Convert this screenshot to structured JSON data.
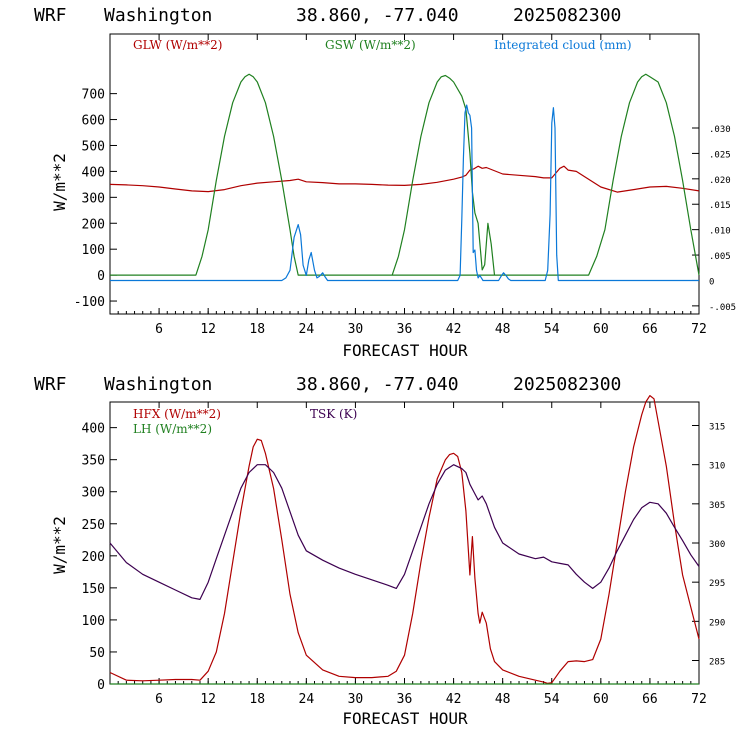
{
  "colors": {
    "glw": "#b00000",
    "gsw": "#208020",
    "cloud": "#0a78d8",
    "hfx": "#b00000",
    "lh": "#208020",
    "tsk": "#3c0050"
  },
  "chart_data": [
    {
      "type": "line",
      "header": {
        "model": "WRF",
        "location": "Washington",
        "coords": "38.860, -77.040",
        "init": "2025082300"
      },
      "xlabel": "FORECAST HOUR",
      "ylabel": "W/m**2",
      "xlim": [
        0,
        72
      ],
      "ylim": [
        -150,
        930
      ],
      "xticks": [
        6,
        12,
        18,
        24,
        30,
        36,
        42,
        48,
        54,
        60,
        66,
        72
      ],
      "yticks": [
        -100,
        0,
        100,
        200,
        300,
        400,
        500,
        600,
        700
      ],
      "y2lim": [
        -0.0066,
        0.0485
      ],
      "y2ticks": [
        -0.005,
        0,
        0.005,
        0.01,
        0.015,
        0.02,
        0.025,
        0.03
      ],
      "y2ticklabels": [
        "-.005",
        "0",
        ".005",
        ".010",
        ".015",
        ".020",
        ".025",
        ".030"
      ],
      "series": [
        {
          "name": "GLW (W/m**2)",
          "axis": "left",
          "x": [
            0,
            2,
            4,
            6,
            8,
            10,
            12,
            14,
            16,
            18,
            20,
            22,
            23,
            24,
            26,
            28,
            30,
            32,
            34,
            36,
            38,
            40,
            42,
            43,
            43.5,
            44,
            44.5,
            45,
            45.5,
            46,
            48,
            50,
            52,
            53,
            54,
            55,
            55.5,
            56,
            57,
            58,
            60,
            62,
            64,
            66,
            68,
            70,
            72
          ],
          "y": [
            350,
            348,
            345,
            340,
            332,
            325,
            322,
            330,
            345,
            355,
            360,
            365,
            370,
            360,
            357,
            352,
            352,
            350,
            347,
            346,
            350,
            358,
            370,
            378,
            385,
            405,
            410,
            420,
            412,
            415,
            390,
            385,
            380,
            375,
            375,
            412,
            420,
            405,
            400,
            380,
            340,
            320,
            330,
            340,
            342,
            335,
            325
          ]
        },
        {
          "name": "GSW (W/m**2)",
          "axis": "left",
          "x": [
            0,
            10.5,
            11.25,
            12,
            13,
            14,
            15,
            16,
            16.5,
            17,
            17.5,
            18,
            19,
            20,
            21,
            22,
            22.5,
            23,
            47,
            48,
            49,
            50,
            58.5,
            59.5,
            60.5,
            61.5,
            62.5,
            63.5,
            64.5,
            65,
            65.5,
            66,
            67,
            68,
            69,
            70,
            71,
            72
          ],
          "y": [
            0,
            0,
            72,
            175,
            365,
            535,
            665,
            745,
            765,
            775,
            765,
            745,
            665,
            535,
            365,
            175,
            72,
            0,
            0,
            0,
            0,
            0,
            0,
            72,
            175,
            365,
            535,
            665,
            745,
            765,
            775,
            765,
            745,
            665,
            535,
            365,
            175,
            0
          ],
          "day2": {
            "x": [
              34.5,
              35.25,
              36,
              37,
              38,
              39,
              40,
              40.5,
              41,
              41.5,
              42,
              43,
              43.5,
              44,
              44.3,
              44.6,
              45,
              45.5,
              45.8,
              46.2,
              46.6,
              47
            ],
            "y": [
              0,
              72,
              175,
              365,
              535,
              665,
              745,
              765,
              770,
              760,
              745,
              690,
              640,
              470,
              320,
              240,
              200,
              20,
              40,
              200,
              120,
              0
            ]
          }
        },
        {
          "name": "Integrated cloud (mm)",
          "axis": "right",
          "x": [
            0,
            21,
            21.5,
            22,
            22.5,
            23,
            23.3,
            23.6,
            24,
            24.3,
            24.6,
            25,
            25.3,
            25.6,
            26,
            26.3,
            26.6,
            27,
            42.5,
            42.8,
            43,
            43.2,
            43.4,
            43.6,
            43.8,
            44,
            44.2,
            44.4,
            44.6,
            44.8,
            45,
            45.2,
            45.4,
            45.6,
            47.5,
            47.8,
            48.1,
            48.4,
            48.7,
            49,
            53.2,
            53.5,
            53.8,
            54,
            54.2,
            54.4,
            54.6,
            54.8,
            72
          ],
          "y": [
            0,
            0,
            0.0005,
            0.002,
            0.0085,
            0.011,
            0.009,
            0.003,
            0.001,
            0.004,
            0.0055,
            0.002,
            0.0005,
            0.0008,
            0.0015,
            0.0007,
            0,
            0,
            0,
            0.001,
            0.012,
            0.024,
            0.033,
            0.0345,
            0.033,
            0.0325,
            0.03,
            0.0055,
            0.006,
            0.002,
            0.0005,
            0.001,
            0.0005,
            0,
            0,
            0.0008,
            0.0015,
            0.001,
            0.0003,
            0,
            0,
            0.002,
            0.013,
            0.031,
            0.034,
            0.03,
            0.005,
            0,
            0
          ]
        }
      ],
      "legend": [
        "GLW (W/m**2)",
        "GSW (W/m**2)",
        "Integrated cloud (mm)"
      ]
    },
    {
      "type": "line",
      "header": {
        "model": "WRF",
        "location": "Washington",
        "coords": "38.860, -77.040",
        "init": "2025082300"
      },
      "xlabel": "FORECAST HOUR",
      "ylabel": "W/m**2",
      "xlim": [
        0,
        72
      ],
      "ylim": [
        0,
        440
      ],
      "xticks": [
        6,
        12,
        18,
        24,
        30,
        36,
        42,
        48,
        54,
        60,
        66,
        72
      ],
      "yticks": [
        0,
        50,
        100,
        150,
        200,
        250,
        300,
        350,
        400
      ],
      "y2lim": [
        282,
        318
      ],
      "y2ticks": [
        285,
        290,
        295,
        300,
        305,
        310,
        315
      ],
      "series": [
        {
          "name": "HFX (W/m**2)",
          "axis": "left",
          "x": [
            0,
            2,
            4,
            6,
            8,
            10,
            11,
            12,
            13,
            14,
            15,
            16,
            17,
            17.5,
            18,
            18.5,
            19,
            20,
            21,
            22,
            23,
            24,
            26,
            28,
            30,
            32,
            34,
            35,
            36,
            37,
            38,
            39,
            40,
            41,
            41.5,
            42,
            42.5,
            43,
            43.5,
            44,
            44.3,
            44.6,
            45,
            45.2,
            45.5,
            46,
            46.5,
            47,
            48,
            50,
            52,
            53,
            53.5,
            54,
            55,
            56,
            57,
            58,
            59,
            60,
            61,
            62,
            63,
            64,
            65,
            65.5,
            66,
            66.5,
            67,
            68,
            69,
            70,
            71,
            72
          ],
          "y": [
            18,
            6,
            5,
            6,
            7,
            7,
            6,
            20,
            50,
            110,
            190,
            270,
            340,
            370,
            382,
            380,
            360,
            305,
            225,
            140,
            80,
            45,
            22,
            12,
            10,
            10,
            12,
            20,
            45,
            110,
            190,
            260,
            320,
            350,
            358,
            360,
            355,
            330,
            270,
            170,
            230,
            165,
            110,
            95,
            112,
            95,
            55,
            35,
            22,
            12,
            6,
            3,
            1,
            2,
            20,
            35,
            36,
            35,
            38,
            70,
            140,
            220,
            300,
            370,
            420,
            440,
            450,
            445,
            410,
            340,
            250,
            170,
            120,
            70
          ]
        },
        {
          "name": "LH (W/m**2)",
          "axis": "left",
          "x": [
            0,
            72
          ],
          "y": [
            0,
            0
          ]
        },
        {
          "name": "TSK (K)",
          "axis": "right",
          "x": [
            0,
            2,
            4,
            6,
            8,
            10,
            11,
            12,
            13,
            14,
            15,
            16,
            17,
            18,
            19,
            20,
            21,
            22,
            23,
            24,
            26,
            28,
            30,
            32,
            34,
            35,
            36,
            37,
            38,
            39,
            40,
            41,
            42,
            43,
            43.5,
            44,
            44.5,
            45,
            45.5,
            46,
            47,
            48,
            50,
            52,
            53,
            54,
            55,
            56,
            57,
            58,
            59,
            60,
            61,
            62,
            63,
            64,
            65,
            66,
            67,
            68,
            69,
            70,
            71,
            72
          ],
          "y": [
            300,
            297.5,
            296,
            295,
            294,
            293,
            292.8,
            295,
            298,
            301,
            304,
            307,
            309,
            310,
            310,
            309,
            307,
            304,
            301,
            299,
            297.8,
            296.8,
            296,
            295.3,
            294.6,
            294.2,
            296,
            299,
            302,
            305,
            307.5,
            309.3,
            310,
            309.5,
            309,
            307.5,
            306.5,
            305.5,
            306,
            305,
            302,
            300,
            298.6,
            298,
            298.2,
            297.6,
            297.4,
            297.2,
            296,
            295,
            294.2,
            295,
            296.8,
            299,
            301,
            303,
            304.5,
            305.2,
            305,
            303.8,
            302,
            300.3,
            298.5,
            297
          ]
        }
      ],
      "legend": [
        "HFX (W/m**2)",
        "LH (W/m**2)",
        "TSK (K)"
      ]
    }
  ]
}
